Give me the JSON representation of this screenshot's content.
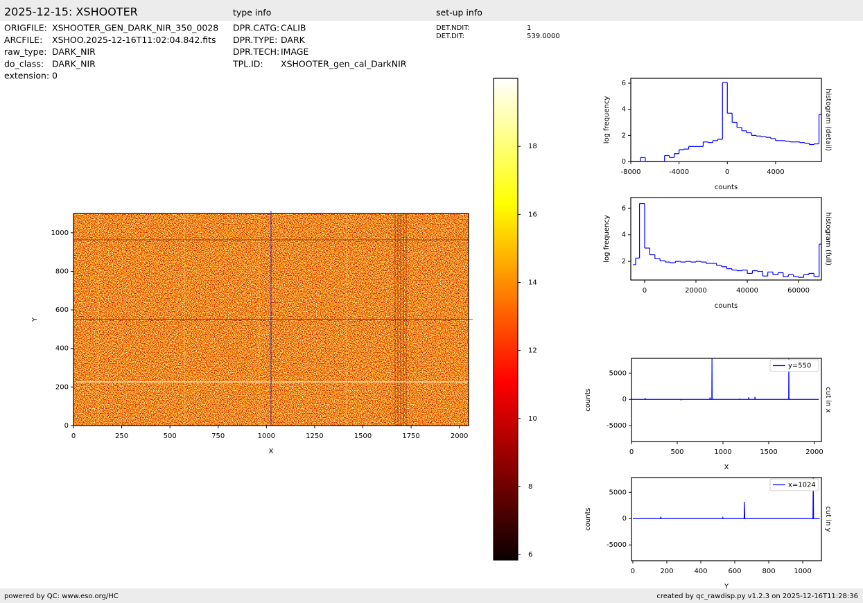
{
  "header": {
    "title": "2025-12-15: XSHOOTER",
    "type_info": "type info",
    "setup_info": "set-up info"
  },
  "file_info": [
    {
      "key": "ORIGFILE:",
      "value": "XSHOOTER_GEN_DARK_NIR_350_0028"
    },
    {
      "key": "ARCFILE:",
      "value": "XSHOO.2025-12-16T11:02:04.842.fits"
    },
    {
      "key": "raw_type:",
      "value": "DARK_NIR"
    },
    {
      "key": "do_class:",
      "value": "DARK_NIR"
    },
    {
      "key": "extension:",
      "value": "0"
    }
  ],
  "type_info": [
    {
      "key": "DPR.CATG:",
      "value": "CALIB"
    },
    {
      "key": "DPR.TYPE:",
      "value": "DARK"
    },
    {
      "key": "DPR.TECH:",
      "value": "IMAGE"
    },
    {
      "key": "TPL.ID:",
      "value": "XSHOOTER_gen_cal_DarkNIR"
    }
  ],
  "setup_info": [
    {
      "key": "DET.NDIT:",
      "value": "1"
    },
    {
      "key": "DET.DIT:",
      "value": "539.0000"
    }
  ],
  "footer": {
    "left": "powered by QC: www.eso.org/HC",
    "right": "created by qc_rawdisp.py v1.2.3 on 2025-12-16T11:28:36"
  },
  "chart_data": [
    {
      "type": "heatmap",
      "xlabel": "X",
      "ylabel": "Y",
      "xlim": [
        0,
        2048
      ],
      "ylim": [
        0,
        1100
      ],
      "xticks": [
        0,
        250,
        500,
        750,
        1000,
        1250,
        1500,
        1750,
        2000
      ],
      "yticks": [
        0,
        200,
        400,
        600,
        800,
        1000
      ],
      "cuts": {
        "x": 1024,
        "y": 550
      },
      "cut_color": "#0000ff",
      "colormap": "hot",
      "colorbar": {
        "lim": [
          5.84,
          20
        ],
        "ticks": [
          6,
          8,
          10,
          12,
          14,
          16,
          18
        ]
      }
    },
    {
      "type": "histogram",
      "xlabel": "counts",
      "ylabel": "log frequency",
      "side_label": "histogram (detail)",
      "color": "#0000ff",
      "bins": [
        -8000,
        -7600,
        -7200,
        -6800,
        -6400,
        -6000,
        -5600,
        -5200,
        -4800,
        -4400,
        -4000,
        -3600,
        -3200,
        -2800,
        -2400,
        -2000,
        -1600,
        -1200,
        -800,
        -400,
        0,
        400,
        800,
        1200,
        1600,
        2000,
        2400,
        2800,
        3200,
        3600,
        4000,
        4400,
        4800,
        5200,
        5600,
        6000,
        6400,
        6800,
        7200,
        7600,
        7800
      ],
      "values": [
        0,
        0,
        0.3,
        0,
        0,
        0,
        0,
        0.45,
        0.3,
        0.6,
        0.9,
        0.95,
        1.15,
        1.15,
        1.15,
        1.5,
        1.45,
        1.6,
        1.7,
        6.05,
        3.7,
        3.0,
        2.6,
        2.35,
        2.2,
        2.0,
        1.95,
        1.9,
        1.85,
        1.75,
        1.6,
        1.6,
        1.55,
        1.5,
        1.5,
        1.45,
        1.4,
        1.3,
        1.35,
        3.6
      ],
      "xlim": [
        -8000,
        7800
      ],
      "ylim": [
        0,
        6.37
      ],
      "xticks": [
        -8000,
        -4000,
        0,
        4000
      ],
      "yticks": [
        0,
        2,
        4,
        6
      ]
    },
    {
      "type": "histogram",
      "xlabel": "counts",
      "ylabel": "log frequency",
      "side_label": "histogram (full)",
      "color": "#0000ff",
      "bins": [
        -4500,
        -3500,
        -2000,
        0,
        2000,
        4000,
        6000,
        8000,
        10000,
        12000,
        14000,
        16000,
        18000,
        20000,
        22000,
        24000,
        26000,
        28000,
        30000,
        32000,
        34000,
        36000,
        38000,
        40000,
        42000,
        44000,
        46000,
        48000,
        50000,
        52000,
        54000,
        56000,
        58000,
        60000,
        62000,
        64000,
        66000,
        68000,
        68900
      ],
      "values": [
        1.75,
        2.25,
        6.35,
        3.0,
        2.5,
        2.2,
        2.05,
        1.95,
        1.9,
        2.0,
        1.95,
        2.0,
        1.95,
        2.0,
        1.95,
        1.85,
        1.85,
        1.7,
        1.6,
        1.45,
        1.35,
        1.3,
        1.35,
        1.1,
        1.3,
        1.25,
        0.9,
        1.2,
        1.0,
        1.15,
        0.85,
        1.0,
        0.85,
        0.8,
        1.0,
        1.1,
        0.85,
        3.3
      ],
      "xlim": [
        -5400,
        68900
      ],
      "ylim": [
        0.6,
        6.8
      ],
      "xticks": [
        0,
        20000,
        40000,
        60000
      ],
      "yticks": [
        2,
        4,
        6
      ]
    },
    {
      "type": "line",
      "xlabel": "X",
      "ylabel": "counts",
      "side_label": "cut in x",
      "legend": "upper right",
      "x": [
        0,
        148,
        150,
        152,
        540,
        542,
        544,
        855,
        858,
        861,
        878,
        880,
        882,
        1180,
        1182,
        1184,
        1280,
        1282,
        1284,
        1348,
        1350,
        1352,
        1718,
        1720,
        1722,
        2047
      ],
      "series": [
        {
          "name": "y=550",
          "color": "#0000ff",
          "values": [
            0,
            0,
            250,
            0,
            0,
            -100,
            0,
            0,
            350,
            0,
            0,
            7800,
            0,
            0,
            150,
            0,
            0,
            400,
            0,
            0,
            500,
            0,
            0,
            7800,
            0,
            0
          ]
        }
      ],
      "xlim": [
        0,
        2076
      ],
      "ylim": [
        -8000,
        7800
      ],
      "xticks": [
        0,
        500,
        1000,
        1500,
        2000
      ],
      "yticks": [
        -5000,
        0,
        5000
      ]
    },
    {
      "type": "line",
      "xlabel": "Y",
      "ylabel": "counts",
      "side_label": "cut in y",
      "legend": "upper right",
      "x": [
        0,
        163,
        165,
        167,
        528,
        530,
        532,
        655,
        657,
        659,
        1060,
        1062,
        1064,
        1100
      ],
      "series": [
        {
          "name": "x=1024",
          "color": "#0000ff",
          "values": [
            0,
            0,
            350,
            0,
            0,
            200,
            0,
            0,
            3200,
            0,
            0,
            7800,
            0,
            0
          ]
        }
      ],
      "xlim": [
        -8,
        1110
      ],
      "ylim": [
        -8000,
        7800
      ],
      "xticks": [
        0,
        200,
        400,
        600,
        800,
        1000
      ],
      "yticks": [
        -5000,
        0,
        5000
      ]
    }
  ]
}
